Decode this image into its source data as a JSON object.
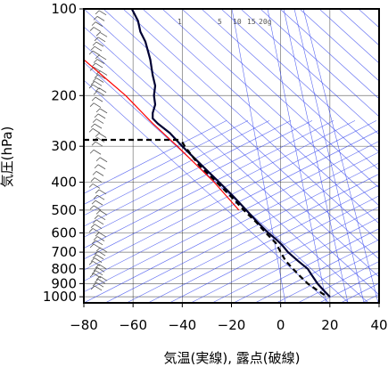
{
  "chart_data": {
    "type": "line",
    "title": "",
    "xlabel": "気温(実線), 露点(破線)",
    "ylabel": "気圧(hPa)",
    "xlim": [
      -80,
      40
    ],
    "ylim": [
      1050,
      100
    ],
    "y_scale": "log",
    "x_ticks": [
      "−80",
      "−60",
      "−40",
      "−20",
      "0",
      "20",
      "40"
    ],
    "y_ticks": [
      "100",
      "200",
      "300",
      "400",
      "500",
      "600",
      "700",
      "800",
      "900",
      "1000"
    ],
    "mixing_ratio_labels": [
      "1",
      "5",
      "10",
      "15",
      "20g"
    ],
    "grid": true,
    "series": [
      {
        "style": "solid",
        "color": "#000033",
        "points": [
          [
            100,
            -60.5
          ],
          [
            110,
            -58
          ],
          [
            120,
            -57
          ],
          [
            130,
            -55
          ],
          [
            150,
            -53
          ],
          [
            170,
            -52
          ],
          [
            185,
            -51
          ],
          [
            200,
            -51.5
          ],
          [
            215,
            -51
          ],
          [
            230,
            -52
          ],
          [
            240,
            -52
          ],
          [
            250,
            -50
          ],
          [
            270,
            -45
          ],
          [
            300,
            -40
          ],
          [
            350,
            -32
          ],
          [
            400,
            -25
          ],
          [
            450,
            -19
          ],
          [
            500,
            -14
          ],
          [
            550,
            -9.5
          ],
          [
            600,
            -5
          ],
          [
            630,
            -2
          ],
          [
            660,
            0.5
          ],
          [
            700,
            3
          ],
          [
            750,
            7
          ],
          [
            800,
            11
          ],
          [
            850,
            13
          ],
          [
            900,
            15
          ],
          [
            950,
            17.5
          ],
          [
            1000,
            20
          ]
        ]
      },
      {
        "style": "dashed",
        "color": "#000000",
        "points": [
          [
            290,
            -40
          ],
          [
            300,
            -39
          ],
          [
            350,
            -33
          ],
          [
            400,
            -26
          ],
          [
            450,
            -20
          ],
          [
            500,
            -15
          ],
          [
            550,
            -10
          ],
          [
            600,
            -6
          ],
          [
            650,
            -2
          ],
          [
            700,
            0
          ],
          [
            750,
            2
          ],
          [
            800,
            5
          ],
          [
            850,
            8
          ],
          [
            900,
            11
          ],
          [
            950,
            15
          ],
          [
            1000,
            19
          ]
        ]
      },
      {
        "style": "dashed",
        "color": "#000000",
        "points": [
          [
            285,
            -80
          ],
          [
            285,
            -40
          ]
        ]
      },
      {
        "style": "solid",
        "color": "#ff0000",
        "points": [
          [
            150,
            -80
          ],
          [
            200,
            -63
          ],
          [
            250,
            -52
          ],
          [
            300,
            -42
          ],
          [
            350,
            -34
          ],
          [
            400,
            -27
          ],
          [
            500,
            -17
          ]
        ]
      }
    ],
    "wind_barbs": {
      "color": "#555555",
      "side": "left",
      "x_position": -72,
      "levels": [
        100,
        105,
        110,
        115,
        120,
        125,
        130,
        135,
        140,
        145,
        150,
        155,
        160,
        165,
        170,
        175,
        180,
        185,
        190,
        195,
        200,
        210,
        220,
        230,
        240,
        250,
        260,
        270,
        280,
        290,
        300,
        320,
        340,
        360,
        380,
        400,
        420,
        440,
        460,
        480,
        500,
        520,
        540,
        560,
        580,
        600,
        620,
        640,
        660,
        680,
        700,
        720,
        740,
        760,
        780,
        800,
        820,
        840,
        860,
        880,
        900,
        925,
        950
      ]
    }
  }
}
